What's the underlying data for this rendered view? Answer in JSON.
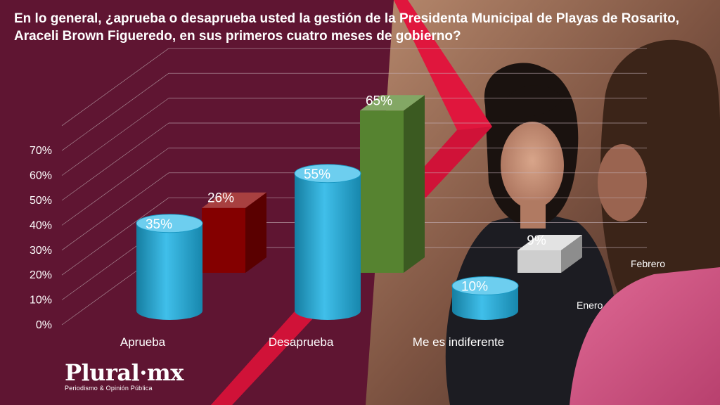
{
  "title": "En lo general, ¿aprueba o desaprueba usted la gestión de la Presidenta Municipal de Playas de Rosarito, Araceli Brown Figueredo, en sus primeros cuatro meses de gobierno?",
  "logo": {
    "name": "Plural·mx",
    "tagline": "Periodismo & Opinión Pública"
  },
  "colors": {
    "background": "#5f1532",
    "accent_red": "#d9173a",
    "enero": "#1eb4e6",
    "aprueba_febrero": "#8b0000",
    "desaprueba_febrero": "#5a8a32",
    "indiferente_febrero": "#d9d9d9",
    "text": "#ffffff"
  },
  "chart_data": {
    "type": "bar",
    "title": "En lo general, ¿aprueba o desaprueba usted la gestión de la Presidenta Municipal de Playas de Rosarito, Araceli Brown Figueredo, en sus primeros cuatro meses de gobierno?",
    "categories": [
      "Aprueba",
      "Desaprueba",
      "Me es indiferente"
    ],
    "series": [
      {
        "name": "Enero",
        "values": [
          35,
          55,
          10
        ],
        "labels": [
          "35%",
          "55%",
          "10%"
        ]
      },
      {
        "name": "Febrero",
        "values": [
          26,
          65,
          9
        ],
        "labels": [
          "26%",
          "65%",
          "9%"
        ]
      }
    ],
    "y_ticks": [
      "0%",
      "10%",
      "20%",
      "30%",
      "40%",
      "50%",
      "60%",
      "70%"
    ],
    "ylim": [
      0,
      70
    ],
    "grid": true,
    "style": "3d"
  }
}
